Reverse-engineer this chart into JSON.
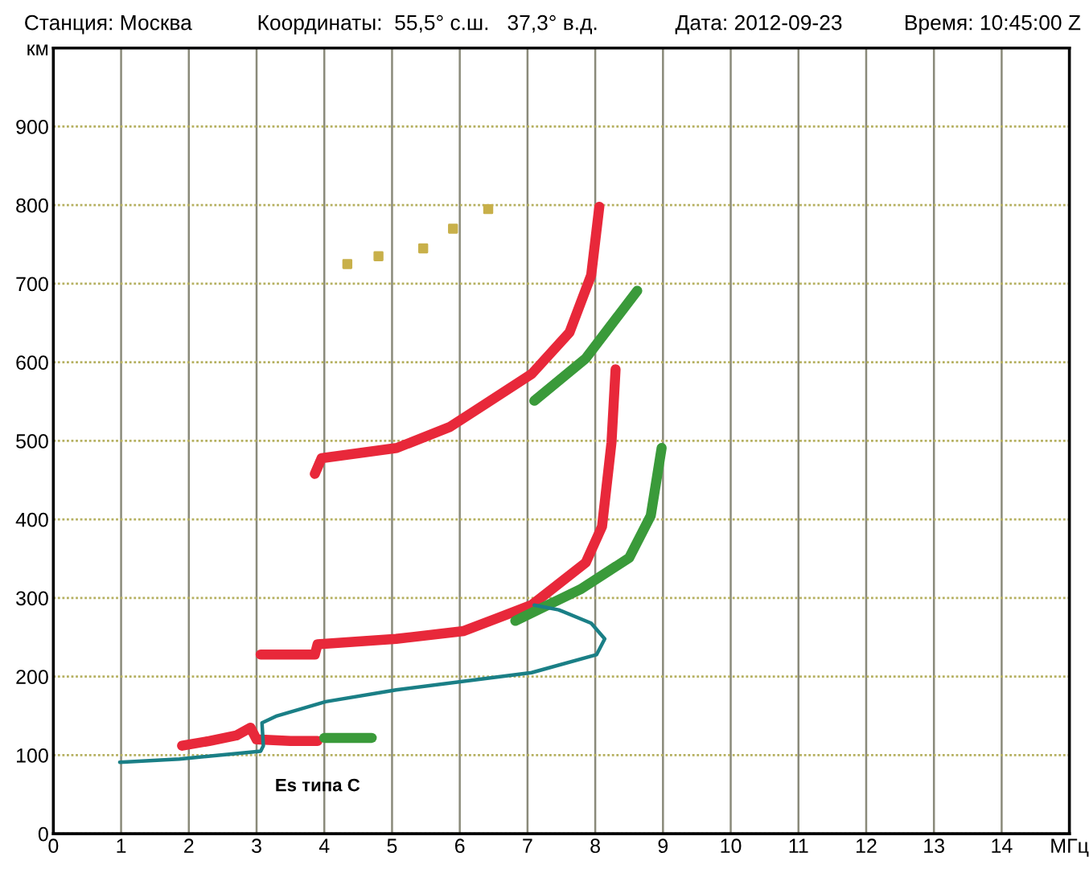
{
  "chart_data": {
    "type": "line",
    "annotations": [
      "Станция: Москва",
      "Координаты:  55,5° с.ш.   37,3° в.д.",
      "Дата: 2012-09-23",
      "Время: 10:45:00 Z",
      "Es типа C"
    ],
    "series": [
      {
        "color": "#e8283a",
        "x": [
          1.9,
          2.3,
          2.7,
          2.91,
          3.0,
          3.5,
          3.9
        ],
        "values": [
          112,
          118,
          125,
          135,
          120,
          118,
          118
        ]
      },
      {
        "color": "#3a9a3a",
        "x": [
          4.0,
          4.4,
          4.7
        ],
        "values": [
          122,
          122,
          122
        ]
      },
      {
        "color": "#e8283a",
        "x": [
          3.06,
          3.86,
          3.9,
          5.06,
          6.06,
          7.06,
          7.86,
          8.1,
          8.24,
          8.3
        ],
        "values": [
          228,
          228,
          241,
          248,
          258,
          291,
          345,
          391,
          498,
          591
        ]
      },
      {
        "color": "#3a9a3a",
        "x": [
          6.82,
          7.78,
          8.5,
          8.82,
          8.98
        ],
        "values": [
          271,
          311,
          351,
          405,
          491
        ]
      },
      {
        "color": "#e8283a",
        "x": [
          3.86,
          3.96,
          5.07,
          5.86,
          7.06,
          7.62,
          7.94,
          8.06
        ],
        "values": [
          458,
          478,
          491,
          518,
          585,
          638,
          711,
          798
        ]
      },
      {
        "color": "#3a9a3a",
        "x": [
          7.1,
          7.86,
          8.62
        ],
        "values": [
          551,
          605,
          691
        ]
      },
      {
        "type": "scatter",
        "color": "#c8b04a",
        "x": [
          4.34,
          4.8,
          5.46,
          5.9,
          6.42
        ],
        "values": [
          725,
          735,
          745,
          770,
          795
        ]
      },
      {
        "color": "#1a7f86",
        "x": [
          0.98,
          1.86,
          3.06,
          3.1,
          3.08,
          3.3,
          4.02,
          5.06,
          7.06,
          8.02,
          8.14,
          7.94,
          7.46,
          7.1
        ],
        "values": [
          91,
          95,
          105,
          112,
          141,
          150,
          168,
          183,
          205,
          228,
          248,
          268,
          285,
          291
        ]
      }
    ],
    "xlim": [
      0,
      15
    ],
    "ylim": [
      0,
      1000
    ],
    "xticks": [
      0,
      1,
      2,
      3,
      4,
      5,
      6,
      7,
      8,
      9,
      10,
      11,
      12,
      13,
      14,
      {
        "value": 15,
        "label": "МГц"
      }
    ],
    "yticks": [
      0,
      100,
      200,
      300,
      400,
      500,
      600,
      700,
      800,
      900,
      {
        "value": 1000,
        "label": "км"
      }
    ],
    "grid": true,
    "line_style": "solid"
  }
}
